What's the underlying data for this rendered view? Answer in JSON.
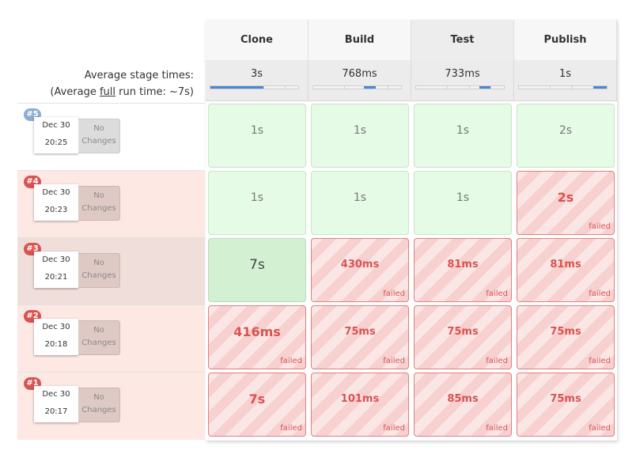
{
  "average": {
    "line1": "Average stage times:",
    "line2_prefix": "(Average ",
    "line2_link": "full",
    "line2_suffix": " run time: ~7s)"
  },
  "stages": [
    {
      "name": "Clone",
      "avg": "3s",
      "avg_fraction": 0.6
    },
    {
      "name": "Build",
      "avg": "768ms",
      "avg_fraction": 0.13
    },
    {
      "name": "Test",
      "avg": "733ms",
      "avg_fraction": 0.13
    },
    {
      "name": "Publish",
      "avg": "1s",
      "avg_fraction": 0.15
    }
  ],
  "runs": [
    {
      "number": "#5",
      "date": "Dec 30",
      "time": "20:25",
      "changes": "No Changes",
      "cells": [
        {
          "time": "1s",
          "status": "success"
        },
        {
          "time": "1s",
          "status": "success"
        },
        {
          "time": "1s",
          "status": "success"
        },
        {
          "time": "2s",
          "status": "success"
        }
      ]
    },
    {
      "number": "#4",
      "date": "Dec 30",
      "time": "20:23",
      "changes": "No Changes",
      "cells": [
        {
          "time": "1s",
          "status": "success"
        },
        {
          "time": "1s",
          "status": "success"
        },
        {
          "time": "1s",
          "status": "success"
        },
        {
          "time": "2s",
          "status": "failed"
        }
      ]
    },
    {
      "number": "#3",
      "date": "Dec 30",
      "time": "20:21",
      "changes": "No Changes",
      "cells": [
        {
          "time": "7s",
          "status": "success"
        },
        {
          "time": "430ms",
          "status": "failed"
        },
        {
          "time": "81ms",
          "status": "failed"
        },
        {
          "time": "81ms",
          "status": "failed"
        }
      ]
    },
    {
      "number": "#2",
      "date": "Dec 30",
      "time": "20:18",
      "changes": "No Changes",
      "cells": [
        {
          "time": "416ms",
          "status": "failed"
        },
        {
          "time": "75ms",
          "status": "failed"
        },
        {
          "time": "75ms",
          "status": "failed"
        },
        {
          "time": "75ms",
          "status": "failed"
        }
      ]
    },
    {
      "number": "#1",
      "date": "Dec 30",
      "time": "20:17",
      "changes": "No Changes",
      "cells": [
        {
          "time": "7s",
          "status": "failed"
        },
        {
          "time": "101ms",
          "status": "failed"
        },
        {
          "time": "85ms",
          "status": "failed"
        },
        {
          "time": "75ms",
          "status": "failed"
        }
      ]
    }
  ],
  "failed_label": "failed",
  "colors": {
    "success_bg": "#e6fbe6",
    "failed_text": "#d9534f",
    "badge_success": "#8aaed3",
    "badge_failed": "#d9534f",
    "progress": "#4a86d1",
    "row_failed_bg": "#fde8e4",
    "row_selected_bg": "#f0deda"
  }
}
